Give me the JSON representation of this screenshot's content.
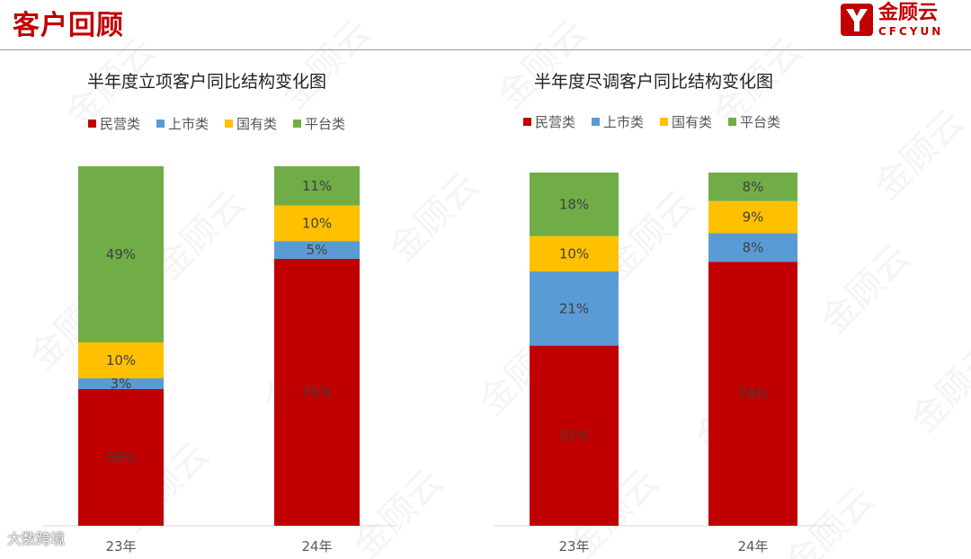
{
  "header": {
    "title": "客户回顾",
    "logo_name": "金顾云",
    "logo_sub": "CFCYUN",
    "brand_color": "#c00000"
  },
  "watermark_text": "金顾云",
  "source_mark": "大数跨境",
  "colors": {
    "民营类": "#c00000",
    "上市类": "#5b9bd5",
    "国有类": "#ffc000",
    "平台类": "#70ad47"
  },
  "chart_data": [
    {
      "type": "bar",
      "stacked": true,
      "title": "半年度立项客户同比结构变化图",
      "categories": [
        "23年",
        "24年"
      ],
      "legend": "top",
      "series": [
        {
          "name": "民营类",
          "values": [
            38,
            75
          ]
        },
        {
          "name": "上市类",
          "values": [
            3,
            5
          ]
        },
        {
          "name": "国有类",
          "values": [
            10,
            10
          ]
        },
        {
          "name": "平台类",
          "values": [
            49,
            11
          ]
        }
      ],
      "data_labels": [
        [
          "38%",
          "75%"
        ],
        [
          "3%",
          "5%"
        ],
        [
          "10%",
          "10%"
        ],
        [
          "49%",
          "11%"
        ]
      ],
      "ylim": [
        0,
        100
      ],
      "grid": false
    },
    {
      "type": "bar",
      "stacked": true,
      "title": "半年度尽调客户同比结构变化图",
      "categories": [
        "23年",
        "24年"
      ],
      "legend": "top",
      "series": [
        {
          "name": "民营类",
          "values": [
            51,
            74
          ]
        },
        {
          "name": "上市类",
          "values": [
            21,
            8
          ]
        },
        {
          "name": "国有类",
          "values": [
            10,
            9
          ]
        },
        {
          "name": "平台类",
          "values": [
            18,
            8
          ]
        }
      ],
      "data_labels": [
        [
          "51%",
          "74%"
        ],
        [
          "21%",
          "8%"
        ],
        [
          "10%",
          "9%"
        ],
        [
          "18%",
          "8%"
        ]
      ],
      "ylim": [
        0,
        100
      ],
      "grid": false
    }
  ]
}
